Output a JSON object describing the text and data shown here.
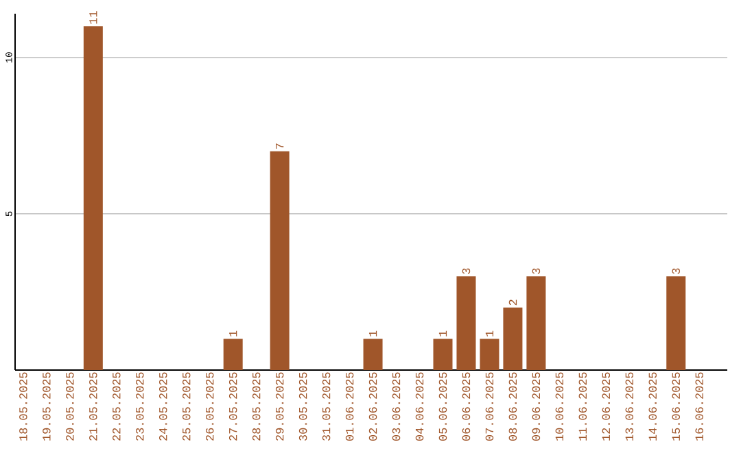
{
  "chart_data": {
    "type": "bar",
    "categories": [
      "18.05.2025",
      "19.05.2025",
      "20.05.2025",
      "21.05.2025",
      "22.05.2025",
      "23.05.2025",
      "24.05.2025",
      "25.05.2025",
      "26.05.2025",
      "27.05.2025",
      "28.05.2025",
      "29.05.2025",
      "30.05.2025",
      "31.05.2025",
      "01.06.2025",
      "02.06.2025",
      "03.06.2025",
      "04.06.2025",
      "05.06.2025",
      "06.06.2025",
      "07.06.2025",
      "08.06.2025",
      "09.06.2025",
      "10.06.2025",
      "11.06.2025",
      "12.06.2025",
      "13.06.2025",
      "14.06.2025",
      "15.06.2025",
      "16.06.2025"
    ],
    "values": [
      0,
      0,
      0,
      11,
      0,
      0,
      0,
      0,
      0,
      1,
      0,
      7,
      0,
      0,
      0,
      1,
      0,
      0,
      1,
      3,
      1,
      2,
      3,
      0,
      0,
      0,
      0,
      0,
      3,
      0
    ],
    "value_labels": [
      null,
      null,
      null,
      "11",
      null,
      null,
      null,
      null,
      null,
      "1",
      null,
      "7",
      null,
      null,
      null,
      "1",
      null,
      null,
      "1",
      "3",
      "1",
      "2",
      "3",
      null,
      null,
      null,
      null,
      null,
      "3",
      null
    ],
    "color": "#a0562a",
    "ylim": [
      0,
      11.4
    ],
    "yticks": [
      5,
      10
    ],
    "grid": "y"
  }
}
